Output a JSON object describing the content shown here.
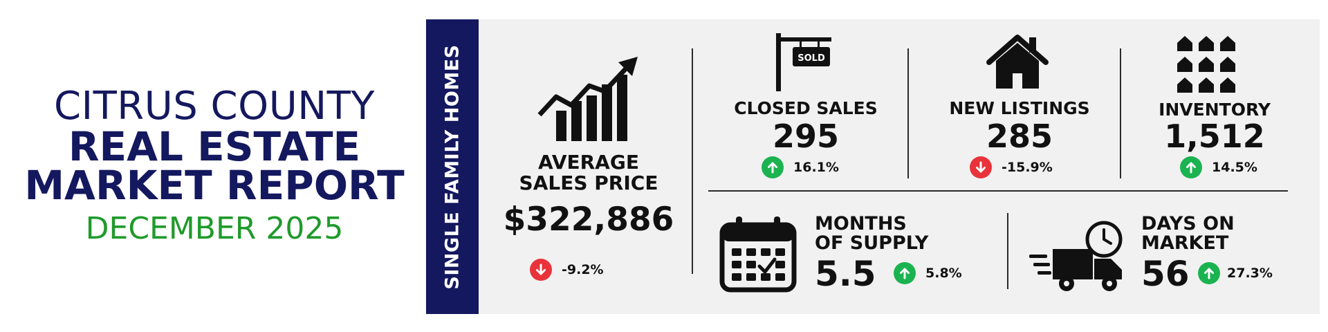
{
  "title": {
    "county": "CITRUS COUNTY",
    "line1": "REAL ESTATE",
    "line2": "MARKET REPORT",
    "date": "DECEMBER 2025"
  },
  "side_tab": "SINGLE FAMILY HOMES",
  "colors": {
    "navy": "#14185e",
    "green": "#1f9a2b",
    "up": "#1bb350",
    "down": "#e8333a",
    "panel": "#f1f1f1"
  },
  "metrics": {
    "avg_price": {
      "label1": "AVERAGE",
      "label2": "SALES PRICE",
      "value": "$322,886",
      "change": "-9.2%",
      "direction": "down",
      "icon": "growth-chart-icon"
    },
    "closed_sales": {
      "label": "CLOSED SALES",
      "value": "295",
      "change": "16.1%",
      "direction": "up",
      "icon": "sold-sign-icon",
      "sign_text": "SOLD"
    },
    "new_listings": {
      "label": "NEW LISTINGS",
      "value": "285",
      "change": "-15.9%",
      "direction": "down",
      "icon": "house-icon"
    },
    "inventory": {
      "label": "INVENTORY",
      "value": "1,512",
      "change": "14.5%",
      "direction": "up",
      "icon": "houses-grid-icon"
    },
    "months_supply": {
      "label1": "MONTHS",
      "label2": "OF SUPPLY",
      "value": "5.5",
      "change": "5.8%",
      "direction": "up",
      "icon": "calendar-icon"
    },
    "days_on_market": {
      "label1": "DAYS ON",
      "label2": "MARKET",
      "value": "56",
      "change": "27.3%",
      "direction": "up",
      "icon": "delivery-truck-icon"
    }
  }
}
